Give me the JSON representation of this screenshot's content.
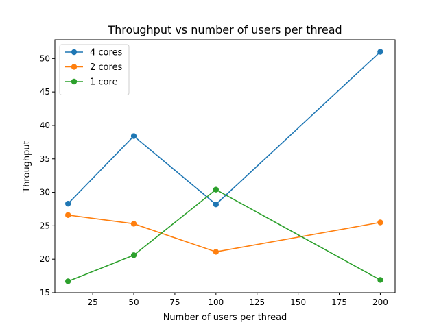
{
  "chart_data": {
    "type": "line",
    "title": "Throughput vs number of users per thread",
    "xlabel": "Number of users per thread",
    "ylabel": "Throughput",
    "xlim": [
      2,
      209
    ],
    "ylim": [
      15,
      52.8
    ],
    "xticks": [
      25,
      50,
      75,
      100,
      125,
      150,
      175,
      200
    ],
    "yticks": [
      15,
      20,
      25,
      30,
      35,
      40,
      45,
      50
    ],
    "grid": false,
    "legend_position": "top-left",
    "x": [
      10,
      50,
      100,
      200
    ],
    "series": [
      {
        "name": "4 cores",
        "color": "#1f77b4",
        "values": [
          28.3,
          38.4,
          28.2,
          51.0
        ]
      },
      {
        "name": "2 cores",
        "color": "#ff7f0e",
        "values": [
          26.6,
          25.3,
          21.1,
          25.5
        ]
      },
      {
        "name": "1 core",
        "color": "#2ca02c",
        "values": [
          16.7,
          20.6,
          30.4,
          16.9
        ]
      }
    ]
  }
}
